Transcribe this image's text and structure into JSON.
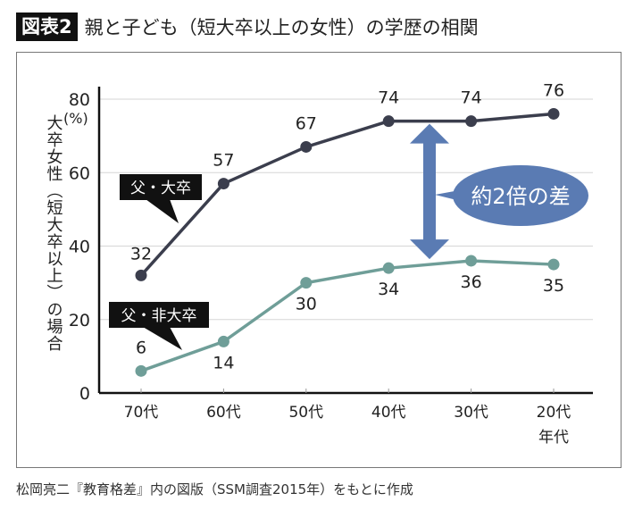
{
  "title": {
    "badge": "図表2",
    "text": "親と子ども（短大卒以上の女性）の学歴の相関"
  },
  "source": "松岡亮二『教育格差』内の図版（SSM調査2015年）をもとに作成",
  "chart_data": {
    "type": "line",
    "title": "親と子ども（短大卒以上の女性）の学歴の相関",
    "ylabel": "大卒女性（短大卒以上）の場合",
    "yunit": "(%)",
    "xlabel": "年代",
    "categories": [
      "70代",
      "60代",
      "50代",
      "40代",
      "30代",
      "20代"
    ],
    "ylim": [
      0,
      80
    ],
    "yticks": [
      0,
      20,
      40,
      60,
      80
    ],
    "grid": true,
    "series": [
      {
        "name": "父・大卒",
        "values": [
          32,
          57,
          67,
          74,
          74,
          76
        ],
        "color": "#3b3e4d"
      },
      {
        "name": "父・非大卒",
        "values": [
          6,
          14,
          30,
          34,
          36,
          35
        ],
        "color": "#6f9e98"
      }
    ],
    "annotation": {
      "text": "約2倍の差",
      "color": "#5a7bb3"
    }
  }
}
